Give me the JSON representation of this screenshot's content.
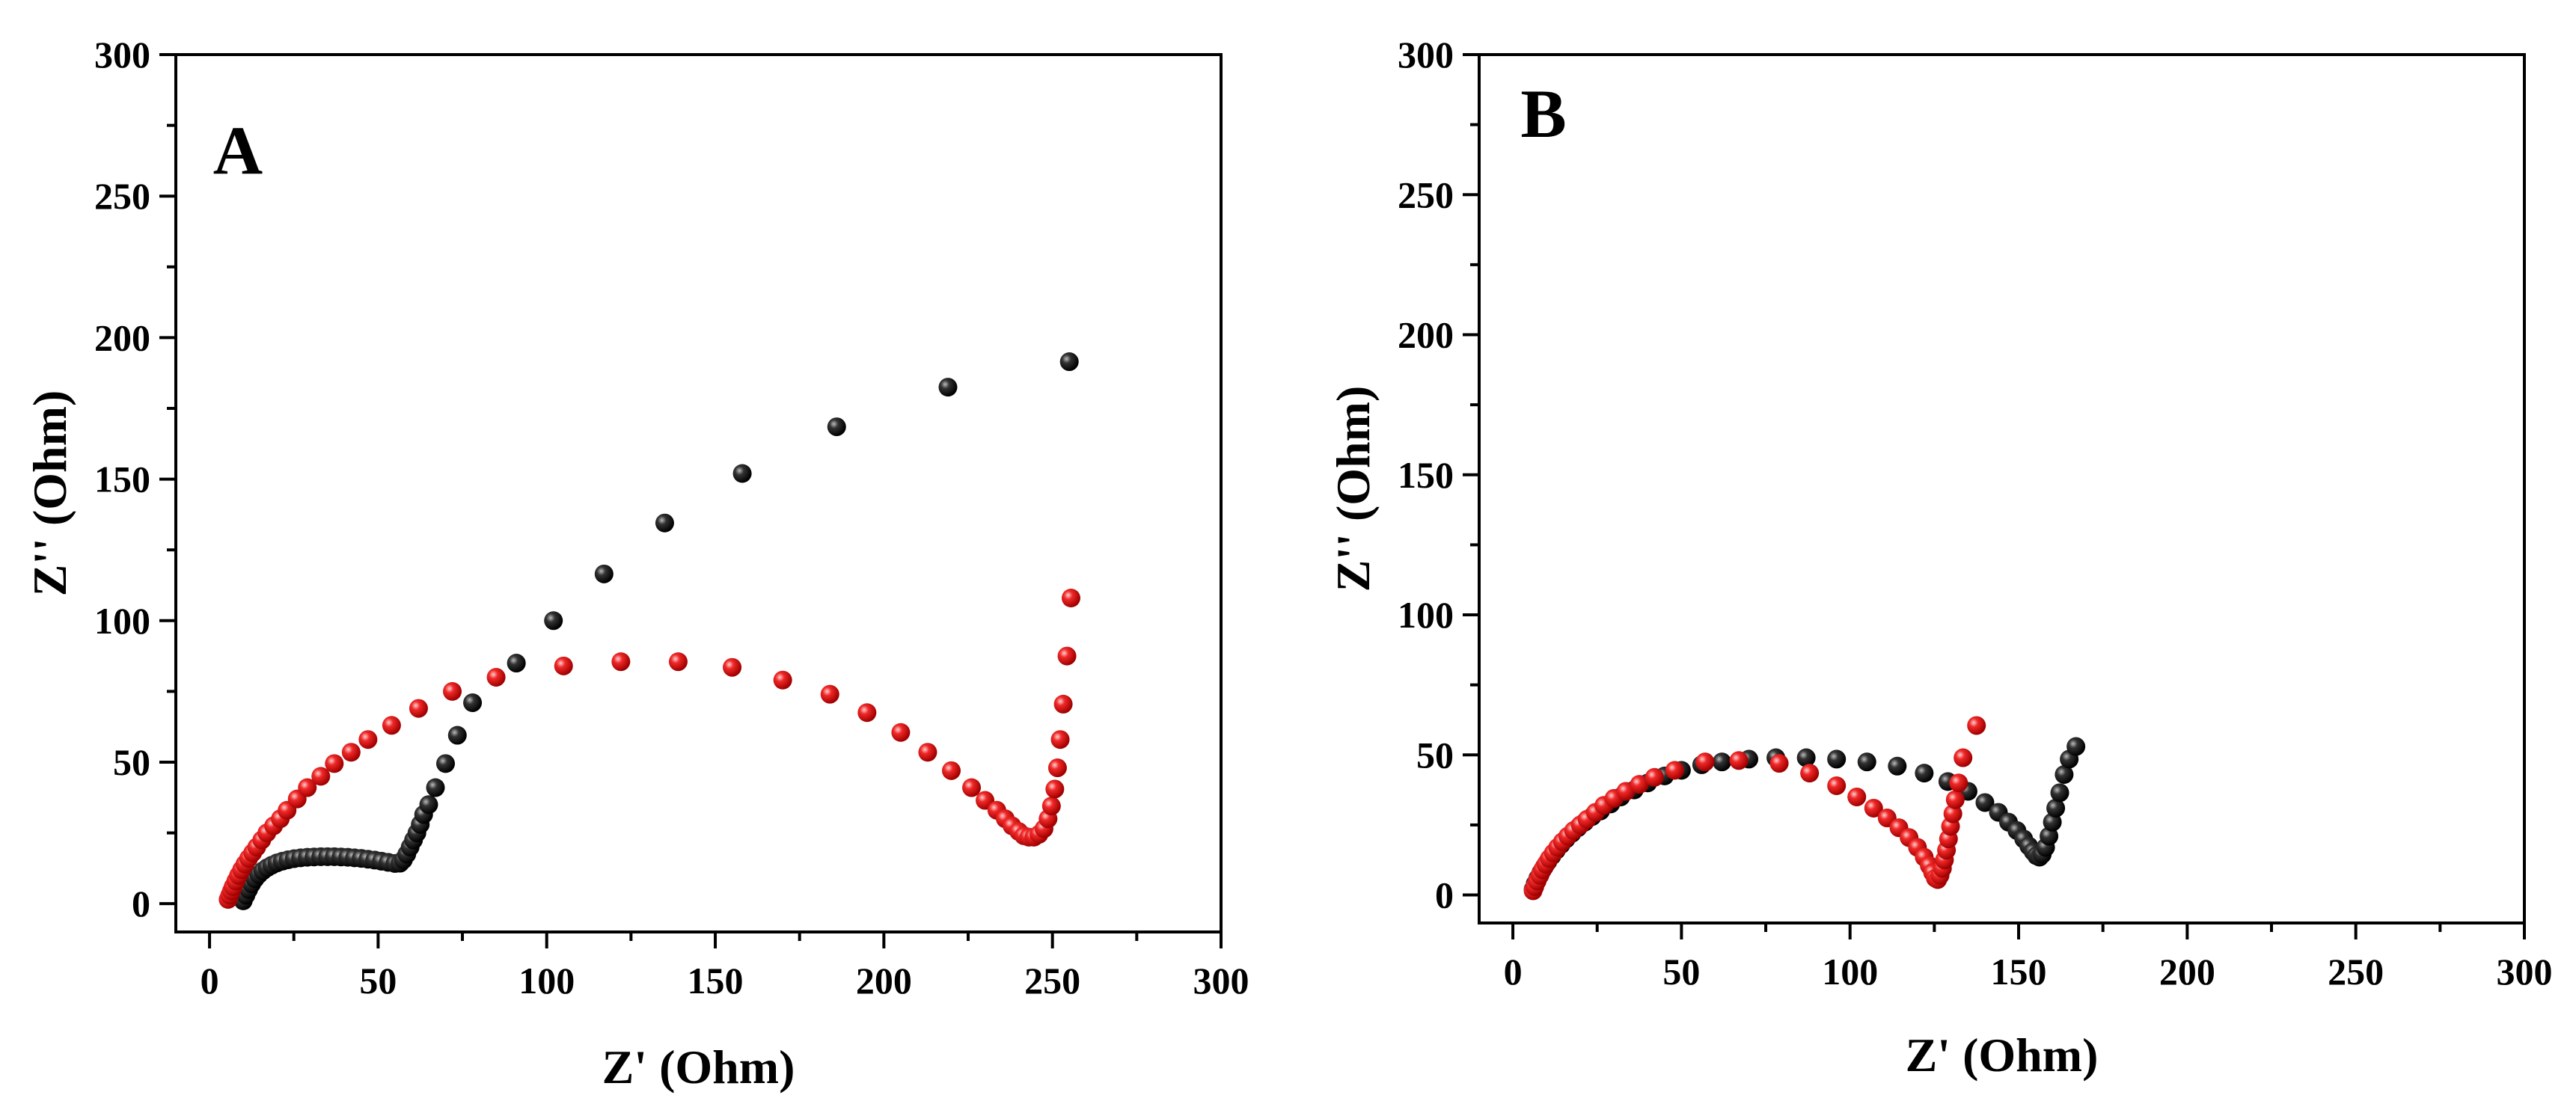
{
  "chart_data": [
    {
      "type": "scatter",
      "panel_label": "A",
      "xlabel": "Z' (Ohm)",
      "ylabel": "Z'' (Ohm)",
      "xlim": [
        -10,
        300
      ],
      "ylim": [
        -10,
        300
      ],
      "xticks": [
        0,
        50,
        100,
        150,
        200,
        250,
        300
      ],
      "yticks": [
        0,
        50,
        100,
        150,
        200,
        250,
        300
      ],
      "grid": false,
      "legend": "none",
      "series": [
        {
          "color": "#000000",
          "points": [
            [
              10,
              1
            ],
            [
              10.8,
              3
            ],
            [
              11.6,
              5
            ],
            [
              12.5,
              7
            ],
            [
              13.5,
              8.8
            ],
            [
              14.6,
              10.3
            ],
            [
              15.8,
              11.6
            ],
            [
              17.1,
              12.7
            ],
            [
              18.5,
              13.6
            ],
            [
              20,
              14.4
            ],
            [
              21.6,
              15
            ],
            [
              23.3,
              15.5
            ],
            [
              25.1,
              15.9
            ],
            [
              27,
              16.2
            ],
            [
              29,
              16.4
            ],
            [
              31,
              16.5
            ],
            [
              33,
              16.6
            ],
            [
              35,
              16.6
            ],
            [
              37,
              16.6
            ],
            [
              39,
              16.5
            ],
            [
              41,
              16.4
            ],
            [
              43,
              16.2
            ],
            [
              45,
              16
            ],
            [
              47,
              15.7
            ],
            [
              49,
              15.4
            ],
            [
              51,
              15
            ],
            [
              53,
              14.6
            ],
            [
              55,
              14.2
            ],
            [
              56.5,
              14.3
            ],
            [
              57.5,
              15.5
            ],
            [
              58.5,
              17.5
            ],
            [
              59.5,
              20
            ],
            [
              60.5,
              22.5
            ],
            [
              61.5,
              25
            ],
            [
              62.5,
              28
            ],
            [
              63.5,
              31.5
            ],
            [
              65,
              35
            ],
            [
              67,
              41
            ],
            [
              70,
              49.5
            ],
            [
              73.5,
              59.5
            ],
            [
              78,
              71
            ],
            [
              91,
              85
            ],
            [
              102,
              100
            ],
            [
              117,
              116.5
            ],
            [
              135,
              134.5
            ],
            [
              158,
              152
            ],
            [
              186,
              168.5
            ],
            [
              219,
              182.5
            ],
            [
              255,
              191.5
            ]
          ]
        },
        {
          "color": "#e8141c",
          "points": [
            [
              5.5,
              1.5
            ],
            [
              6,
              3
            ],
            [
              6.5,
              4.5
            ],
            [
              7,
              6
            ],
            [
              7.8,
              8
            ],
            [
              8.6,
              10
            ],
            [
              9.5,
              12
            ],
            [
              10.5,
              14
            ],
            [
              11.6,
              16
            ],
            [
              12.8,
              18
            ],
            [
              14,
              20
            ],
            [
              15.5,
              22.5
            ],
            [
              17,
              25
            ],
            [
              19,
              27.5
            ],
            [
              21,
              30
            ],
            [
              23,
              33
            ],
            [
              26,
              37
            ],
            [
              29,
              41
            ],
            [
              33,
              45
            ],
            [
              37,
              49.5
            ],
            [
              42,
              53.5
            ],
            [
              47,
              58
            ],
            [
              54,
              63
            ],
            [
              62,
              69
            ],
            [
              72,
              75
            ],
            [
              85,
              80
            ],
            [
              105,
              84
            ],
            [
              122,
              85.5
            ],
            [
              139,
              85.5
            ],
            [
              155,
              83.5
            ],
            [
              170,
              79
            ],
            [
              184,
              74
            ],
            [
              195,
              67.5
            ],
            [
              205,
              60.5
            ],
            [
              213,
              53.5
            ],
            [
              220,
              47
            ],
            [
              226,
              41
            ],
            [
              230,
              36.5
            ],
            [
              233.5,
              33
            ],
            [
              236,
              30
            ],
            [
              238,
              27.5
            ],
            [
              240,
              25.5
            ],
            [
              241.5,
              24
            ],
            [
              243,
              23.5
            ],
            [
              244.5,
              23.5
            ],
            [
              246,
              24.5
            ],
            [
              247.5,
              26.5
            ],
            [
              248.7,
              30
            ],
            [
              249.7,
              34.5
            ],
            [
              250.7,
              40.5
            ],
            [
              251.5,
              48
            ],
            [
              252.3,
              58
            ],
            [
              253.2,
              70.5
            ],
            [
              254.3,
              87.5
            ],
            [
              255.5,
              108
            ]
          ]
        }
      ]
    },
    {
      "type": "scatter",
      "panel_label": "B",
      "xlabel": "Z' (Ohm)",
      "ylabel": "Z'' (Ohm)",
      "xlim": [
        -10,
        300
      ],
      "ylim": [
        -10,
        300
      ],
      "xticks": [
        0,
        50,
        100,
        150,
        200,
        250,
        300
      ],
      "yticks": [
        0,
        50,
        100,
        150,
        200,
        250,
        300
      ],
      "grid": false,
      "legend": "none",
      "series": [
        {
          "color": "#000000",
          "points": [
            [
              6,
              2
            ],
            [
              6.6,
              4
            ],
            [
              7.4,
              6
            ],
            [
              8.3,
              8
            ],
            [
              9.3,
              10
            ],
            [
              10.4,
              12
            ],
            [
              11.6,
              14
            ],
            [
              12.9,
              16
            ],
            [
              14.3,
              18
            ],
            [
              15.8,
              20
            ],
            [
              17.5,
              22
            ],
            [
              19.3,
              24
            ],
            [
              21.3,
              26
            ],
            [
              23.5,
              28
            ],
            [
              26,
              30
            ],
            [
              29,
              32.5
            ],
            [
              32,
              35
            ],
            [
              36,
              37.5
            ],
            [
              40,
              40
            ],
            [
              45,
              42.5
            ],
            [
              50,
              44.5
            ],
            [
              56,
              46.5
            ],
            [
              62,
              47.5
            ],
            [
              70,
              48.5
            ],
            [
              78,
              49
            ],
            [
              87,
              49
            ],
            [
              96,
              48.5
            ],
            [
              105,
              47.5
            ],
            [
              114,
              46
            ],
            [
              122,
              43.5
            ],
            [
              129,
              40.5
            ],
            [
              135,
              37
            ],
            [
              140,
              33
            ],
            [
              144,
              29.5
            ],
            [
              147,
              26
            ],
            [
              149.5,
              23
            ],
            [
              151.5,
              20
            ],
            [
              153,
              17.5
            ],
            [
              154.3,
              15.5
            ],
            [
              155.3,
              14
            ],
            [
              156.2,
              13.5
            ],
            [
              157,
              14.5
            ],
            [
              158,
              17
            ],
            [
              159,
              21
            ],
            [
              160,
              26
            ],
            [
              161,
              31
            ],
            [
              162.2,
              36.5
            ],
            [
              163.5,
              43
            ],
            [
              165,
              48.5
            ],
            [
              167,
              53
            ]
          ]
        },
        {
          "color": "#e8141c",
          "points": [
            [
              6,
              1.5
            ],
            [
              6.5,
              3
            ],
            [
              7.2,
              5
            ],
            [
              8,
              7
            ],
            [
              8.8,
              9
            ],
            [
              9.8,
              11
            ],
            [
              10.8,
              13
            ],
            [
              12,
              15
            ],
            [
              13.3,
              17
            ],
            [
              14.7,
              19
            ],
            [
              16.3,
              21
            ],
            [
              18,
              23
            ],
            [
              20,
              25
            ],
            [
              22,
              27
            ],
            [
              24.5,
              29.5
            ],
            [
              27,
              32
            ],
            [
              30,
              34.5
            ],
            [
              33.5,
              37
            ],
            [
              37.5,
              39.5
            ],
            [
              42,
              42
            ],
            [
              48,
              44.5
            ],
            [
              57,
              47.5
            ],
            [
              67,
              48
            ],
            [
              79,
              47
            ],
            [
              88,
              43.5
            ],
            [
              96,
              39
            ],
            [
              102,
              35
            ],
            [
              107,
              31
            ],
            [
              111,
              27.5
            ],
            [
              114.5,
              24
            ],
            [
              117.5,
              20.5
            ],
            [
              120,
              17
            ],
            [
              122,
              13.5
            ],
            [
              123.5,
              10.5
            ],
            [
              124.5,
              8
            ],
            [
              125.3,
              6
            ],
            [
              126,
              5.5
            ],
            [
              126.7,
              7
            ],
            [
              127.4,
              9.5
            ],
            [
              128,
              12.5
            ],
            [
              128.6,
              16
            ],
            [
              129.2,
              20
            ],
            [
              129.8,
              24.5
            ],
            [
              130.5,
              29
            ],
            [
              131.2,
              34
            ],
            [
              132.2,
              40
            ],
            [
              133.5,
              49
            ],
            [
              137.5,
              60.5
            ]
          ]
        }
      ]
    }
  ]
}
